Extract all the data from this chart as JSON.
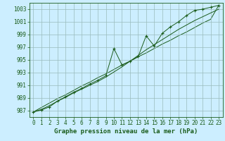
{
  "xlabel": "Graphe pression niveau de la mer (hPa)",
  "background_color": "#cceeff",
  "plot_bg_color": "#cceeff",
  "line_color": "#1a5c1a",
  "grid_color": "#99bbbb",
  "x_values": [
    0,
    1,
    2,
    3,
    4,
    5,
    6,
    7,
    8,
    9,
    10,
    11,
    12,
    13,
    14,
    15,
    16,
    17,
    18,
    19,
    20,
    21,
    22,
    23
  ],
  "y_main": [
    986.8,
    987.1,
    987.6,
    988.5,
    989.2,
    989.9,
    990.5,
    991.2,
    991.8,
    992.5,
    996.8,
    994.2,
    994.8,
    995.5,
    998.8,
    997.2,
    999.2,
    1000.2,
    1001.0,
    1002.0,
    1002.8,
    1003.0,
    1003.3,
    1003.6
  ],
  "y_smooth": [
    986.8,
    987.2,
    987.8,
    988.5,
    989.1,
    989.8,
    990.4,
    991.0,
    991.6,
    992.3,
    993.1,
    993.9,
    994.8,
    995.7,
    996.6,
    997.4,
    998.2,
    999.0,
    999.8,
    1000.5,
    1001.2,
    1001.8,
    1002.4,
    1003.0
  ],
  "y_trend": [
    986.8,
    987.5,
    988.2,
    988.9,
    989.5,
    990.2,
    990.9,
    991.5,
    992.2,
    992.8,
    993.5,
    994.2,
    994.8,
    995.5,
    996.1,
    996.8,
    997.5,
    998.1,
    998.8,
    999.4,
    1000.1,
    1000.8,
    1001.4,
    1003.6
  ],
  "ylim": [
    986,
    1004
  ],
  "xlim": [
    -0.5,
    23.5
  ],
  "yticks": [
    987,
    989,
    991,
    993,
    995,
    997,
    999,
    1001,
    1003
  ],
  "xticks": [
    0,
    1,
    2,
    3,
    4,
    5,
    6,
    7,
    8,
    9,
    10,
    11,
    12,
    13,
    14,
    15,
    16,
    17,
    18,
    19,
    20,
    21,
    22,
    23
  ],
  "tick_fontsize": 5.5,
  "xlabel_fontsize": 6.5,
  "marker_size": 2.5
}
